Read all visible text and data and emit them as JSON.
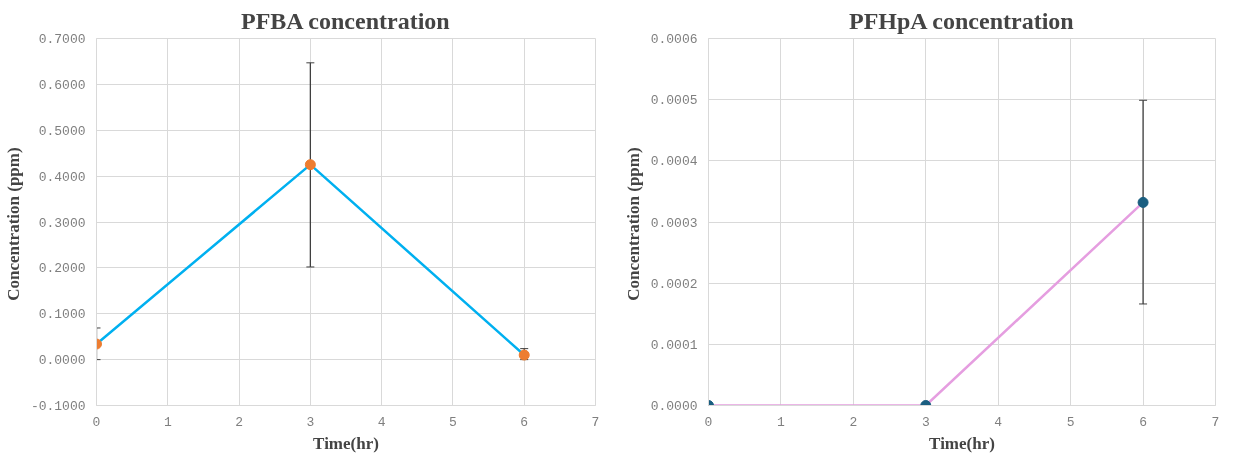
{
  "chart_data": [
    {
      "type": "line",
      "title": "PFBA concentration",
      "xlabel": "Time(hr)",
      "ylabel": "Concentration  (ppm)",
      "x": [
        0,
        3,
        6
      ],
      "series": [
        {
          "color": "#00b0f0",
          "colors": [
            "#ed7d31",
            "#ed7d31",
            "#ed7d31"
          ],
          "values": [
            0.034,
            0.425,
            0.01
          ],
          "errors": [
            [
              0.0,
              0.069
            ],
            [
              0.202,
              0.647
            ],
            [
              0.0,
              0.024
            ]
          ]
        }
      ],
      "xlim": [
        0,
        7
      ],
      "xticks": [
        0,
        1,
        2,
        3,
        4,
        5,
        6,
        7
      ],
      "ylim": [
        -0.1,
        0.7
      ],
      "yticks": [
        {
          "value": -0.1,
          "label": "-0.1000"
        },
        {
          "value": 0.0,
          "label": "0.0000"
        },
        {
          "value": 0.1,
          "label": "0.1000"
        },
        {
          "value": 0.2,
          "label": "0.2000"
        },
        {
          "value": 0.3,
          "label": "0.3000"
        },
        {
          "value": 0.4,
          "label": "0.4000"
        },
        {
          "value": 0.5,
          "label": "0.5000"
        },
        {
          "value": 0.6,
          "label": "0.6000"
        },
        {
          "value": 0.7,
          "label": "0.7000"
        }
      ],
      "grid": true,
      "marker": "circle",
      "line_style": "solid"
    },
    {
      "type": "line",
      "title": "PFHpA concentration",
      "xlabel": "Time(hr)",
      "ylabel": "Concentration  (ppm)",
      "x": [
        0,
        3,
        6
      ],
      "series": [
        {
          "color": "#e59ee0",
          "colors": [
            "#1a5e80",
            "#1a5e80",
            "#1a5e80"
          ],
          "values": [
            0.0,
            0.0,
            0.000332
          ],
          "errors": [
            null,
            null,
            [
              0.000166,
              0.000499
            ]
          ]
        }
      ],
      "xlim": [
        0,
        7
      ],
      "xticks": [
        0,
        1,
        2,
        3,
        4,
        5,
        6,
        7
      ],
      "ylim": [
        0,
        0.0006
      ],
      "yticks": [
        {
          "value": 0.0,
          "label": "0.0000"
        },
        {
          "value": 0.0001,
          "label": "0.0001"
        },
        {
          "value": 0.0002,
          "label": "0.0002"
        },
        {
          "value": 0.0003,
          "label": "0.0003"
        },
        {
          "value": 0.0004,
          "label": "0.0004"
        },
        {
          "value": 0.0005,
          "label": "0.0005"
        },
        {
          "value": 0.0006,
          "label": "0.0006"
        }
      ],
      "grid": true,
      "marker": "circle",
      "line_style": "solid"
    }
  ]
}
